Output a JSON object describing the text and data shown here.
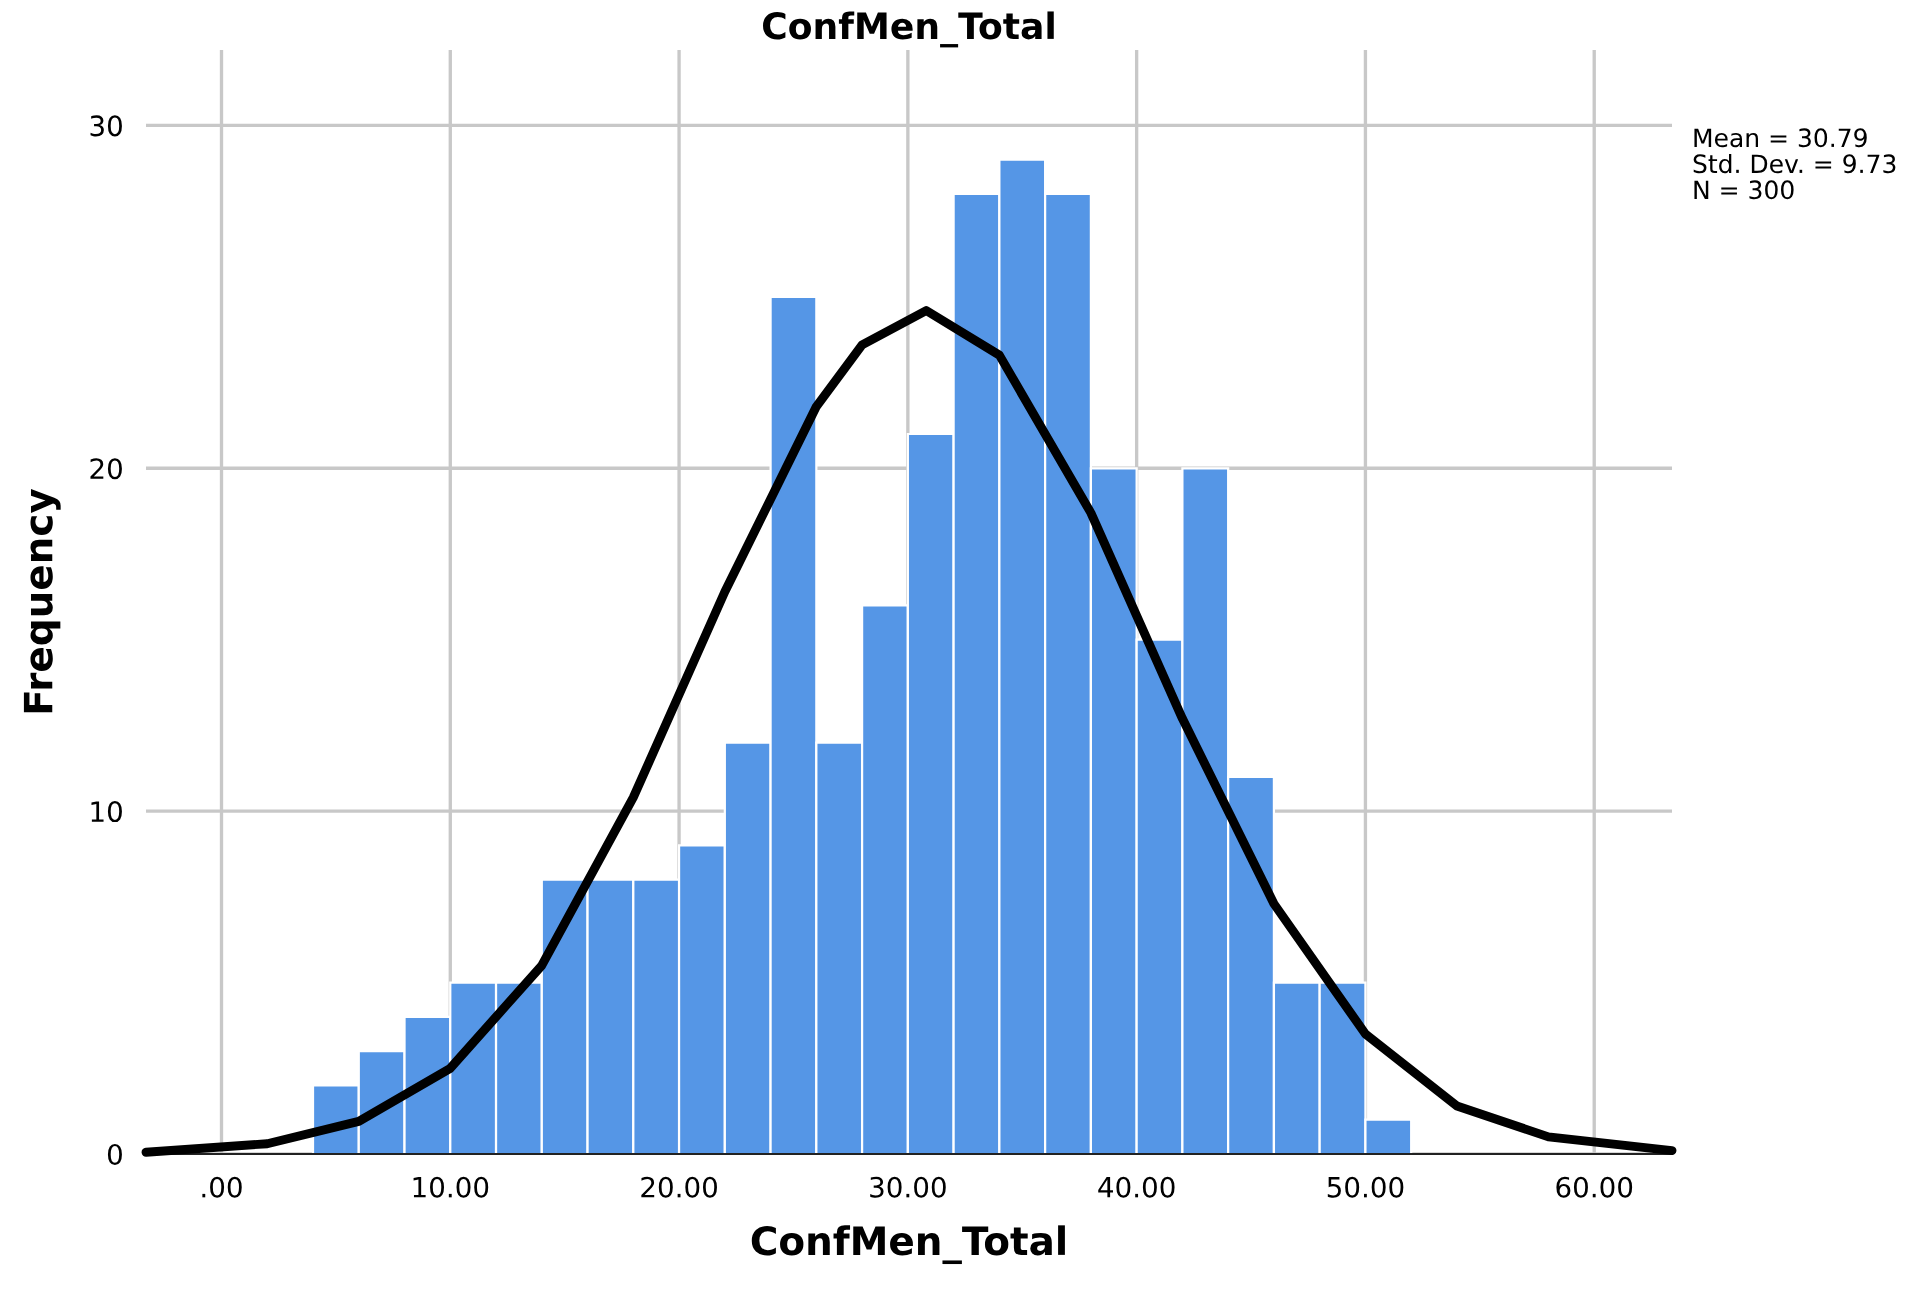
{
  "chart_data": {
    "type": "histogram",
    "title": "ConfMen_Total",
    "xlabel": "ConfMen_Total",
    "ylabel": "Frequency",
    "bins": [
      4,
      6,
      8,
      10,
      12,
      14,
      16,
      18,
      20,
      22,
      24,
      26,
      28,
      30,
      32,
      34,
      36,
      38,
      40,
      42,
      44,
      46,
      48,
      50,
      52
    ],
    "values": [
      2,
      3,
      4,
      5,
      5,
      8,
      8,
      8,
      9,
      12,
      25,
      12,
      16,
      21,
      28,
      29,
      28,
      20,
      15,
      20,
      11,
      5,
      5,
      1
    ],
    "color": "#5596e6",
    "series": [
      {
        "type": "line",
        "color": "#000000",
        "x": [
          -3.3,
          2,
          6,
          10,
          14,
          18,
          22,
          26,
          28,
          30.8,
          34,
          38,
          42,
          46,
          50,
          54,
          58,
          63.4
        ],
        "values": [
          0.05,
          0.3,
          0.95,
          2.5,
          5.5,
          10.4,
          16.4,
          21.8,
          23.6,
          24.6,
          23.3,
          18.7,
          12.7,
          7.3,
          3.5,
          1.4,
          0.5,
          0.1
        ]
      }
    ],
    "xlim": [
      -3.3,
      63.4
    ],
    "ylim": [
      0,
      32.2
    ],
    "xticks": [
      {
        "value": 0,
        "label": ".00"
      },
      {
        "value": 10,
        "label": "10.00"
      },
      {
        "value": 20,
        "label": "20.00"
      },
      {
        "value": 30,
        "label": "30.00"
      },
      {
        "value": 40,
        "label": "40.00"
      },
      {
        "value": 50,
        "label": "50.00"
      },
      {
        "value": 60,
        "label": "60.00"
      }
    ],
    "yticks": [
      0,
      10,
      20,
      30
    ],
    "grid": true,
    "legend": false,
    "annotations": [
      "Mean = 30.79",
      "Std. Dev. = 9.73",
      "N = 300"
    ]
  }
}
